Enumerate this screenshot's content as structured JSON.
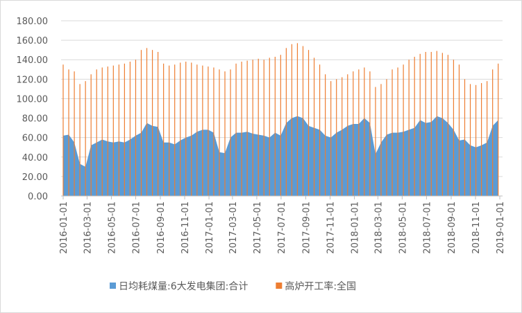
{
  "chart_data": {
    "type": "area-bar",
    "x": [
      "2016-01-01",
      "2016-01-15",
      "2016-01-29",
      "2016-02-12",
      "2016-02-26",
      "2016-03-11",
      "2016-03-25",
      "2016-04-08",
      "2016-04-22",
      "2016-05-06",
      "2016-05-20",
      "2016-06-03",
      "2016-06-17",
      "2016-07-01",
      "2016-07-15",
      "2016-07-29",
      "2016-08-12",
      "2016-08-26",
      "2016-09-09",
      "2016-09-23",
      "2016-10-07",
      "2016-10-21",
      "2016-11-04",
      "2016-11-18",
      "2016-12-02",
      "2016-12-16",
      "2016-12-30",
      "2017-01-13",
      "2017-01-27",
      "2017-02-10",
      "2017-02-24",
      "2017-03-10",
      "2017-03-24",
      "2017-04-07",
      "2017-04-21",
      "2017-05-05",
      "2017-05-19",
      "2017-06-02",
      "2017-06-16",
      "2017-06-30",
      "2017-07-14",
      "2017-07-28",
      "2017-08-11",
      "2017-08-25",
      "2017-09-08",
      "2017-09-22",
      "2017-10-06",
      "2017-10-20",
      "2017-11-03",
      "2017-11-17",
      "2017-12-01",
      "2017-12-15",
      "2017-12-29",
      "2018-01-12",
      "2018-01-26",
      "2018-02-09",
      "2018-02-23",
      "2018-03-09",
      "2018-03-23",
      "2018-04-06",
      "2018-04-20",
      "2018-05-04",
      "2018-05-18",
      "2018-06-01",
      "2018-06-15",
      "2018-06-29",
      "2018-07-13",
      "2018-07-27",
      "2018-08-10",
      "2018-08-24",
      "2018-09-07",
      "2018-09-21",
      "2018-10-05",
      "2018-10-19",
      "2018-11-02",
      "2018-11-16",
      "2018-11-30",
      "2018-12-14",
      "2018-12-28"
    ],
    "series": [
      {
        "name": "日均耗煤量:6大发电集团:合计",
        "color": "#5b9bd5",
        "kind": "area",
        "values": [
          62,
          63,
          55,
          33,
          30,
          52,
          55,
          58,
          56,
          55,
          56,
          55,
          58,
          62,
          65,
          75,
          72,
          71,
          55,
          55,
          53,
          57,
          60,
          62,
          66,
          68,
          68,
          65,
          45,
          44,
          60,
          65,
          65,
          66,
          64,
          63,
          62,
          60,
          65,
          62,
          75,
          80,
          82,
          80,
          72,
          70,
          68,
          62,
          60,
          65,
          68,
          72,
          74,
          74,
          80,
          75,
          43,
          55,
          63,
          65,
          65,
          66,
          68,
          70,
          78,
          75,
          76,
          82,
          80,
          75,
          68,
          57,
          58,
          52,
          50,
          52,
          55,
          72,
          78
        ]
      },
      {
        "name": "高炉开工率:全国",
        "color": "#ed7d31",
        "kind": "bar",
        "values": [
          135,
          130,
          128,
          115,
          118,
          125,
          130,
          132,
          133,
          134,
          135,
          136,
          138,
          140,
          150,
          152,
          150,
          148,
          136,
          134,
          135,
          137,
          138,
          137,
          135,
          134,
          133,
          132,
          130,
          128,
          130,
          136,
          138,
          139,
          140,
          141,
          140,
          142,
          143,
          145,
          152,
          156,
          157,
          154,
          150,
          142,
          135,
          125,
          118,
          120,
          122,
          125,
          128,
          130,
          132,
          128,
          112,
          115,
          120,
          130,
          132,
          135,
          140,
          143,
          146,
          148,
          148,
          149,
          147,
          145,
          140,
          135,
          120,
          115,
          114,
          116,
          118,
          130,
          136
        ]
      }
    ],
    "xlim": [
      "2016-01-01",
      "2019-01-01"
    ],
    "xticks": [
      "2016-01-01",
      "2016-03-01",
      "2016-05-01",
      "2016-07-01",
      "2016-09-01",
      "2016-11-01",
      "2017-01-01",
      "2017-03-01",
      "2017-05-01",
      "2017-07-01",
      "2017-09-01",
      "2017-11-01",
      "2018-01-01",
      "2018-03-01",
      "2018-05-01",
      "2018-07-01",
      "2018-09-01",
      "2018-11-01",
      "2019-01-01"
    ],
    "ylim": [
      0,
      180
    ],
    "yticks": [
      {
        "value": 0,
        "label": "0.00"
      },
      {
        "value": 20,
        "label": "20.00"
      },
      {
        "value": 40,
        "label": "40.00"
      },
      {
        "value": 60,
        "label": "60.00"
      },
      {
        "value": 80,
        "label": "80.00"
      },
      {
        "value": 100,
        "label": "100.00"
      },
      {
        "value": 120,
        "label": "120.00"
      },
      {
        "value": 140,
        "label": "140.00"
      },
      {
        "value": 160,
        "label": "160.00"
      },
      {
        "value": 180,
        "label": "180.00"
      }
    ],
    "grid": true
  }
}
